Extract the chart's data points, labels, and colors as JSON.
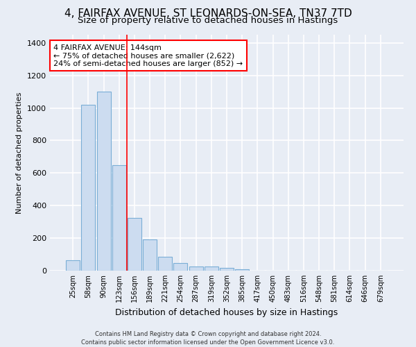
{
  "title_line1": "4, FAIRFAX AVENUE, ST LEONARDS-ON-SEA, TN37 7TD",
  "title_line2": "Size of property relative to detached houses in Hastings",
  "xlabel": "Distribution of detached houses by size in Hastings",
  "ylabel": "Number of detached properties",
  "footnote": "Contains HM Land Registry data © Crown copyright and database right 2024.\nContains public sector information licensed under the Open Government Licence v3.0.",
  "bar_labels": [
    "25sqm",
    "58sqm",
    "90sqm",
    "123sqm",
    "156sqm",
    "189sqm",
    "221sqm",
    "254sqm",
    "287sqm",
    "319sqm",
    "352sqm",
    "385sqm",
    "417sqm",
    "450sqm",
    "483sqm",
    "516sqm",
    "548sqm",
    "581sqm",
    "614sqm",
    "646sqm",
    "679sqm"
  ],
  "bar_values": [
    65,
    1020,
    1100,
    650,
    325,
    190,
    85,
    48,
    25,
    25,
    15,
    10,
    0,
    0,
    0,
    0,
    0,
    0,
    0,
    0,
    0
  ],
  "bar_color": "#ccdcf0",
  "bar_edgecolor": "#7aaed6",
  "vline_x": 4,
  "vline_color": "red",
  "annotation_text": "4 FAIRFAX AVENUE: 144sqm\n← 75% of detached houses are smaller (2,622)\n24% of semi-detached houses are larger (852) →",
  "annotation_box_color": "white",
  "annotation_box_edgecolor": "red",
  "ylim": [
    0,
    1450
  ],
  "yticks": [
    0,
    200,
    400,
    600,
    800,
    1000,
    1200,
    1400
  ],
  "background_color": "#e8edf5",
  "plot_background": "#e8edf5",
  "grid_color": "white",
  "title_fontsize": 11,
  "subtitle_fontsize": 9.5,
  "ylabel_fontsize": 8,
  "xlabel_fontsize": 9
}
